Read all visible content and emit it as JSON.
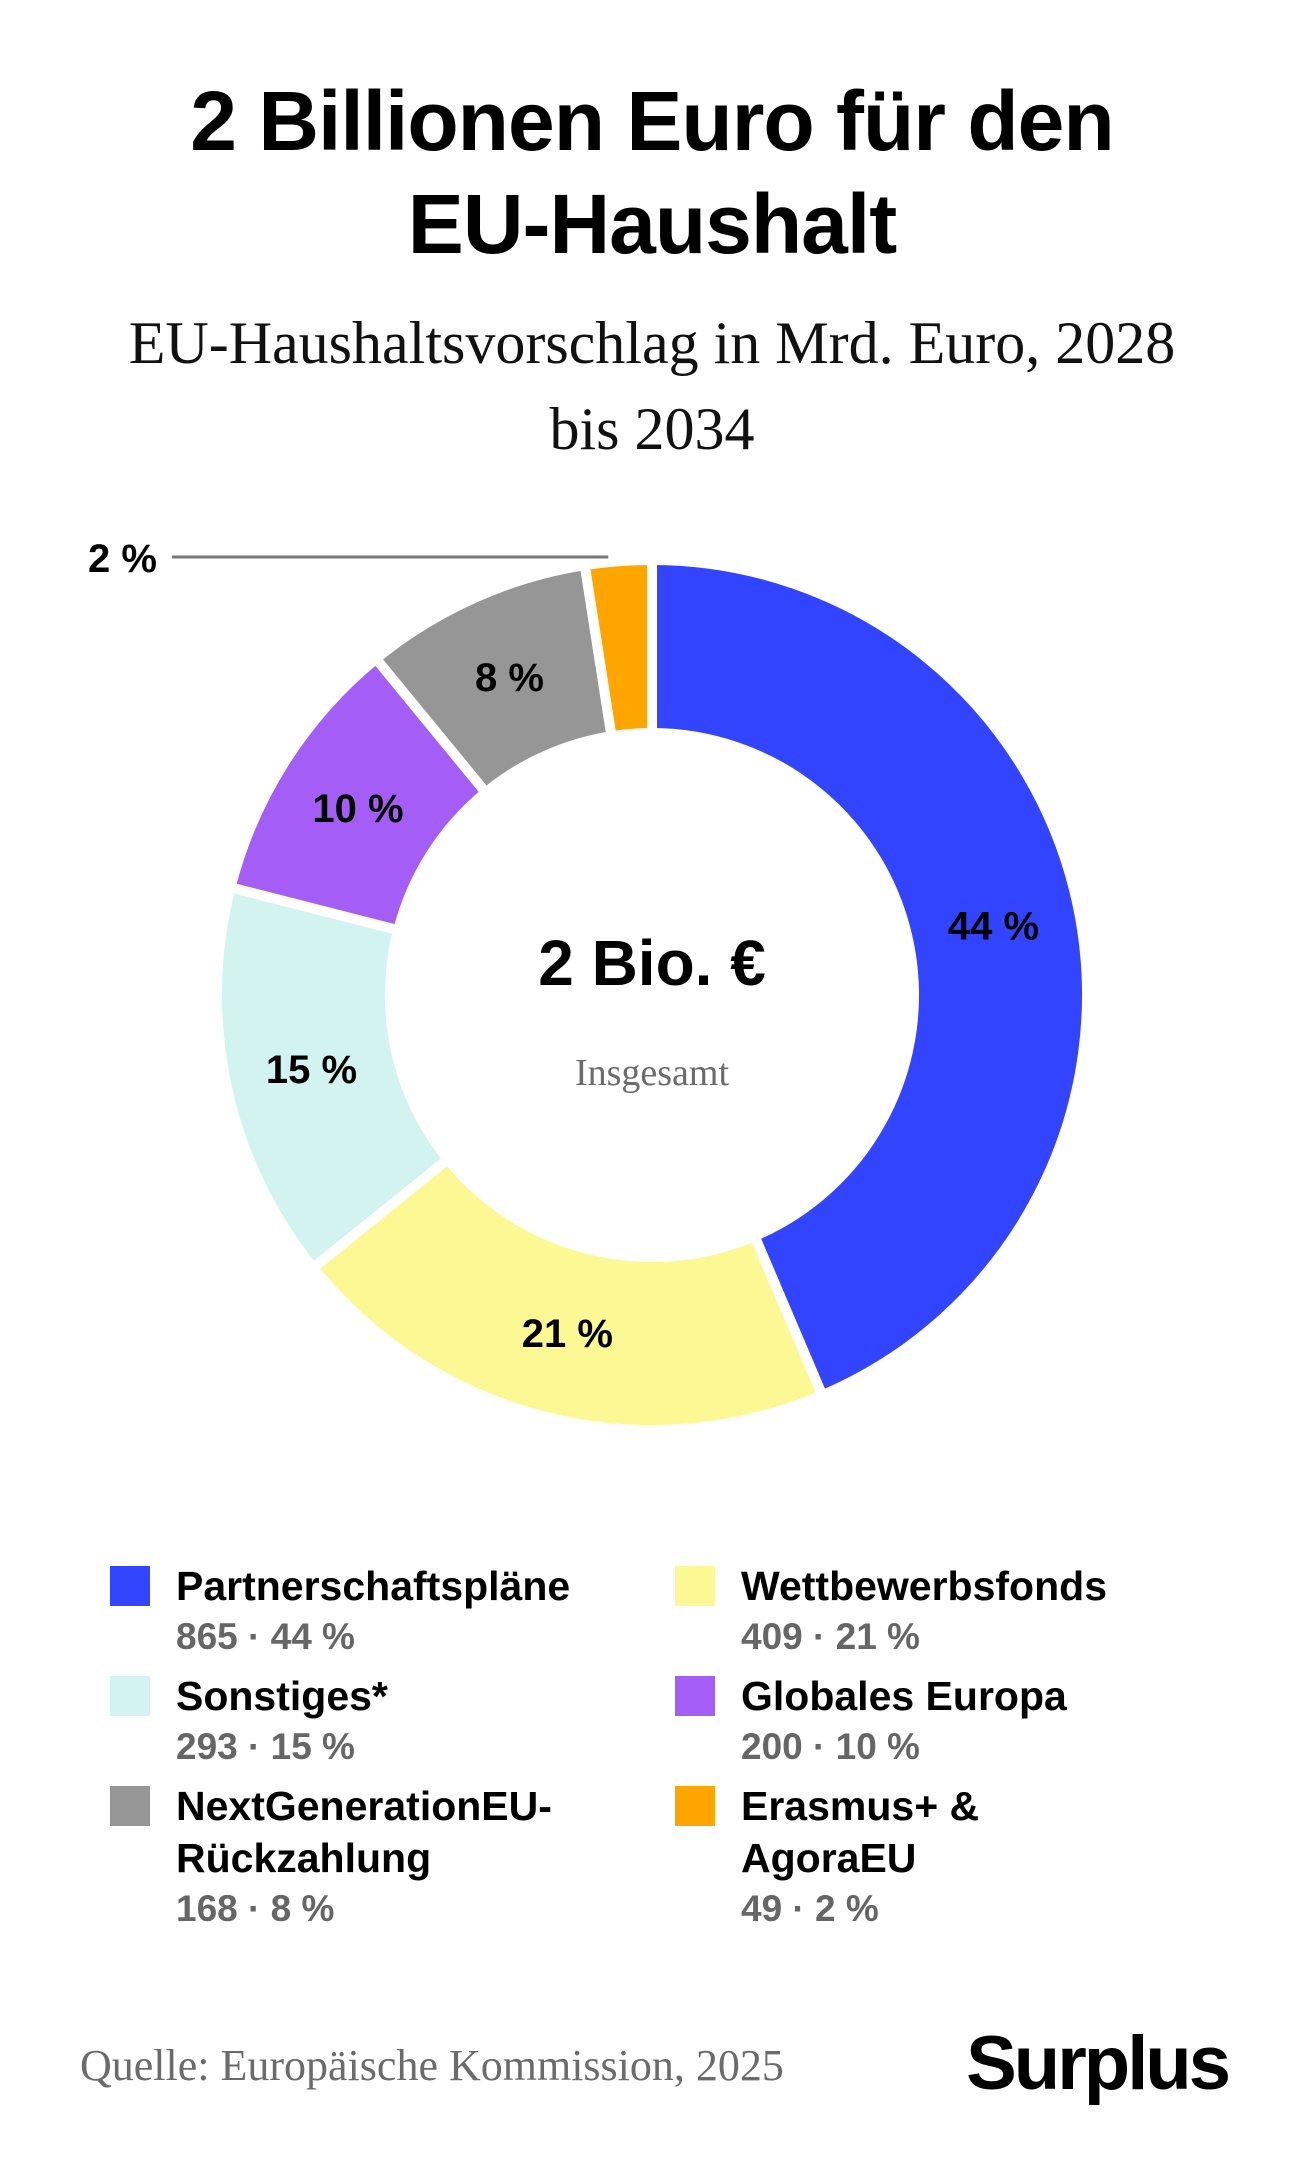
{
  "title_line1": "2 Billionen Euro für den",
  "title_line2": "EU-Haushalt",
  "subtitle_line1": "EU-Haushaltsvorschlag in Mrd. Euro, 2028",
  "subtitle_line2": "bis 2034",
  "center_value": "2 Bio. €",
  "center_label": "Insgesamt",
  "chart_data": {
    "type": "pie",
    "title": "2 Billionen Euro für den EU-Haushalt",
    "subtitle": "EU-Haushaltsvorschlag in Mrd. Euro, 2028 bis 2034",
    "total_label": "2 Bio. €",
    "slices": [
      {
        "name": "Partnerschaftspläne",
        "value": 865,
        "percent_label": "44 %",
        "legend_value": "865 · 44 %",
        "color": "#3344ff"
      },
      {
        "name": "Wettbewerbsfonds",
        "value": 409,
        "percent_label": "21 %",
        "legend_value": "409 · 21 %",
        "color": "#fcf994"
      },
      {
        "name": "Sonstiges*",
        "value": 293,
        "percent_label": "15 %",
        "legend_value": "293 · 15 %",
        "color": "#d2f3ef"
      },
      {
        "name": "Globales Europa",
        "value": 200,
        "percent_label": "10 %",
        "legend_value": "200 · 10 %",
        "color": "#a45df5"
      },
      {
        "name": "NextGenerationEU-Rückzahlung",
        "value": 168,
        "percent_label": "8 %",
        "legend_value": "168 · 8 %",
        "color": "#969696"
      },
      {
        "name": "Erasmus+ & AgoraEU",
        "value": 49,
        "percent_label": "2 %",
        "legend_value": "49 · 2 %",
        "color": "#ffa500"
      }
    ]
  },
  "legend": [
    {
      "name": "Partnerschaftspläne",
      "value": "865 · 44 %",
      "color": "#3344ff"
    },
    {
      "name": "Wettbewerbsfonds",
      "value": "409 · 21 %",
      "color": "#fcf994"
    },
    {
      "name": "Sonstiges*",
      "value": "293 · 15 %",
      "color": "#d2f3ef"
    },
    {
      "name": "Globales Europa",
      "value": "200 · 10 %",
      "color": "#a45df5"
    },
    {
      "name": "NextGenerationEU-Rückzahlung",
      "value": "168 · 8 %",
      "color": "#969696"
    },
    {
      "name": "Erasmus+ & AgoraEU",
      "value": "49 · 2 %",
      "color": "#ffa500"
    }
  ],
  "source": "Quelle: Europäische Kommission, 2025",
  "brand": "Surplus"
}
